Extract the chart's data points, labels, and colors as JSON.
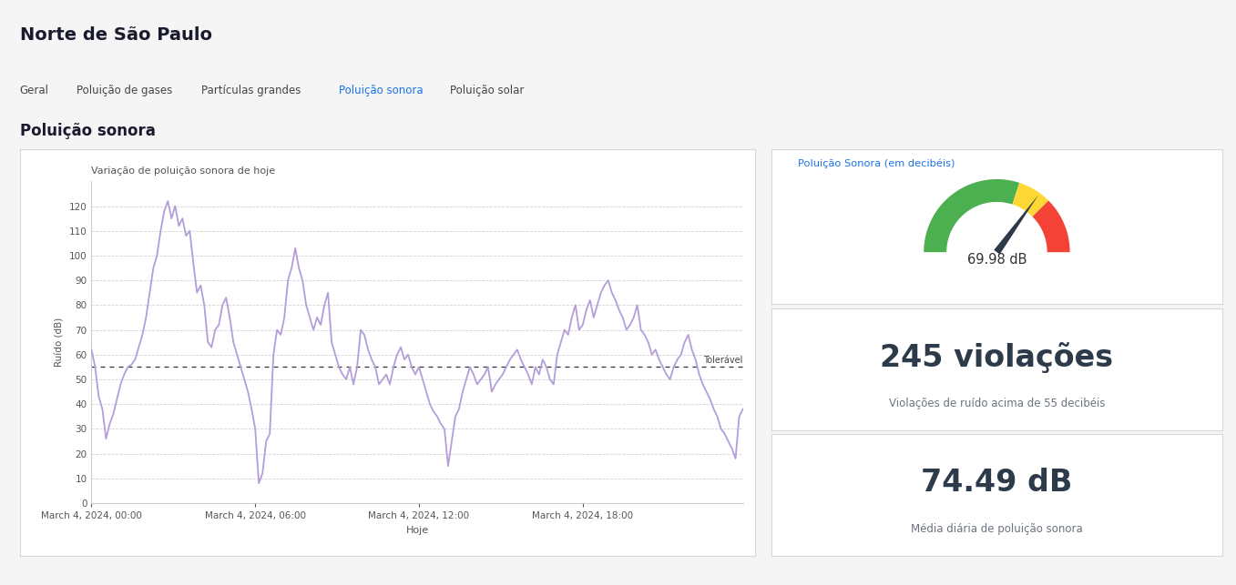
{
  "title": "Norte de São Paulo",
  "tabs": [
    "Geral",
    "Poluição de gases",
    "Partículas grandes",
    "Poluição sonora",
    "Poluição solar"
  ],
  "active_tab": "Poluição sonora",
  "section_title": "Poluição sonora",
  "chart_title": "Variação de poluição sonora de hoje",
  "xlabel": "Hoje",
  "ylabel": "Ruído (dB)",
  "yticks": [
    0,
    10,
    20,
    30,
    40,
    50,
    60,
    70,
    80,
    90,
    100,
    110,
    120
  ],
  "xtick_labels": [
    "March 4, 2024, 00:00",
    "March 4, 2024, 06:00",
    "March 4, 2024, 12:00",
    "March 4, 2024, 18:00"
  ],
  "tolerance_line": 55,
  "tolerance_label": "Tolerável",
  "line_color": "#b39ddb",
  "line_width": 1.3,
  "bg_color": "#f5f5f5",
  "card_bg": "#ffffff",
  "grid_color": "#c8c8c8",
  "gauge_title": "Poluição Sonora (em decibéis)",
  "gauge_value": 69.98,
  "gauge_label": "69.98 dB",
  "gauge_max": 100,
  "violations_value": "245 violações",
  "violations_sub": "Violações de ruído acima de 55 decibéis",
  "avg_value": "74.49 dB",
  "avg_sub": "Média diária de poluição sonora",
  "dark_text": "#2d3a4a",
  "sub_text": "#6b7280",
  "tab_active_color": "#1a73e8",
  "tab_inactive_color": "#444444",
  "title_color": "#1a1a2e",
  "gauge_title_color": "#1a73e8",
  "noise_data": [
    62,
    55,
    43,
    38,
    26,
    32,
    36,
    42,
    48,
    52,
    55,
    56,
    58,
    63,
    68,
    75,
    85,
    95,
    100,
    110,
    118,
    122,
    115,
    120,
    112,
    115,
    108,
    110,
    97,
    85,
    88,
    80,
    65,
    63,
    70,
    72,
    80,
    83,
    75,
    65,
    60,
    55,
    50,
    45,
    38,
    30,
    8,
    12,
    25,
    28,
    60,
    70,
    68,
    75,
    90,
    95,
    103,
    95,
    90,
    80,
    75,
    70,
    75,
    72,
    80,
    85,
    65,
    60,
    55,
    52,
    50,
    55,
    48,
    55,
    70,
    68,
    62,
    58,
    55,
    48,
    50,
    52,
    48,
    55,
    60,
    63,
    58,
    60,
    55,
    52,
    55,
    50,
    45,
    40,
    37,
    35,
    32,
    30,
    15,
    25,
    35,
    38,
    45,
    50,
    55,
    52,
    48,
    50,
    52,
    55,
    45,
    48,
    50,
    52,
    55,
    58,
    60,
    62,
    58,
    55,
    52,
    48,
    55,
    52,
    58,
    55,
    50,
    48,
    60,
    65,
    70,
    68,
    75,
    80,
    70,
    72,
    78,
    82,
    75,
    80,
    85,
    88,
    90,
    85,
    82,
    78,
    75,
    70,
    72,
    75,
    80,
    70,
    68,
    65,
    60,
    62,
    58,
    55,
    52,
    50,
    55,
    58,
    60,
    65,
    68,
    62,
    58,
    52,
    48,
    45,
    42,
    38,
    35,
    30,
    28,
    25,
    22,
    18,
    35,
    38
  ]
}
